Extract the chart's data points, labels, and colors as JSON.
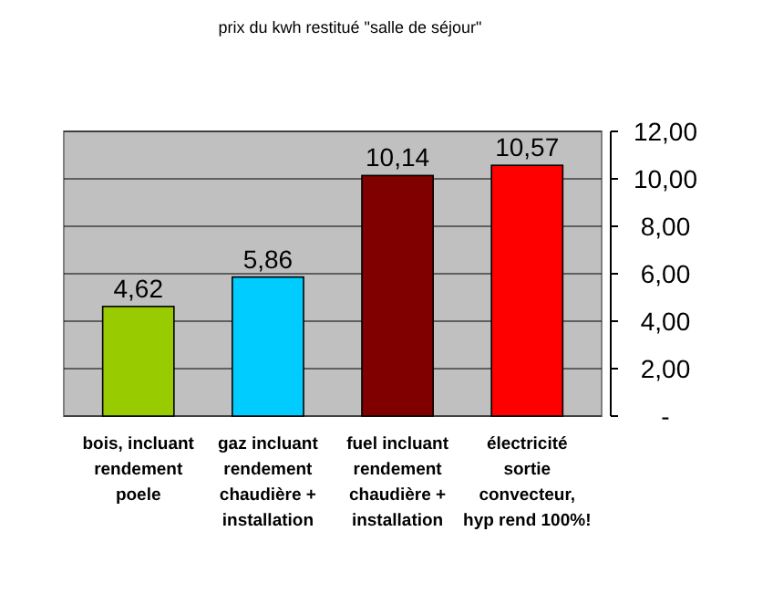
{
  "chart_data": {
    "type": "bar",
    "title": "prix du kwh restitué \"salle de séjour\"",
    "categories": [
      "bois, incluant rendement poele",
      "gaz incluant rendement chaudière + installation",
      "fuel incluant rendement chaudière + installation",
      "électricité sortie convecteur, hyp rend 100%!"
    ],
    "values": [
      4.62,
      5.86,
      10.14,
      10.57
    ],
    "colors": [
      "#99cc00",
      "#00ccff",
      "#800000",
      "#ff0000"
    ],
    "value_labels": [
      "4,62",
      "5,86",
      "10,14",
      "10,57"
    ],
    "ylim": [
      0,
      12
    ],
    "yticks": [
      {
        "value": 0,
        "label": "-"
      },
      {
        "value": 2,
        "label": "2,00"
      },
      {
        "value": 4,
        "label": "4,00"
      },
      {
        "value": 6,
        "label": "6,00"
      },
      {
        "value": 8,
        "label": "8,00"
      },
      {
        "value": 10,
        "label": "10,00"
      },
      {
        "value": 12,
        "label": "12,00"
      }
    ],
    "grid": "y"
  }
}
